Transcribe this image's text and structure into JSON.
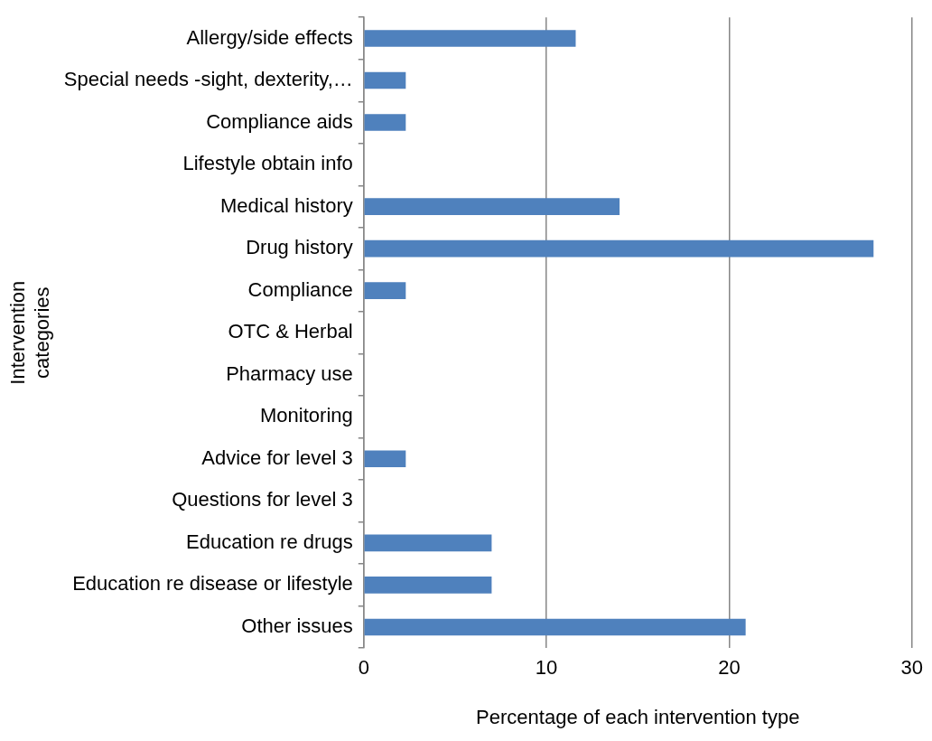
{
  "chart_data": {
    "type": "bar",
    "orientation": "horizontal",
    "xlabel": "Percentage of each intervention type",
    "ylabel": "Intervention categories",
    "categories": [
      "Allergy/side effects",
      "Special needs -sight, dexterity,…",
      "Compliance aids",
      "Lifestyle obtain info",
      "Medical history",
      "Drug history",
      "Compliance",
      "OTC & Herbal",
      "Pharmacy use",
      "Monitoring",
      "Advice for level 3",
      "Questions for level 3",
      "Education re drugs",
      "Education re disease or lifestyle",
      "Other issues"
    ],
    "values": [
      11.6,
      2.3,
      2.3,
      0,
      14.0,
      27.9,
      2.3,
      0,
      0,
      0,
      2.3,
      0,
      7.0,
      7.0,
      20.9
    ],
    "color": "#4f81bd",
    "xlim": [
      0,
      30
    ],
    "xticks": [
      0,
      10,
      20,
      30
    ],
    "grid": "x",
    "legend": false
  }
}
